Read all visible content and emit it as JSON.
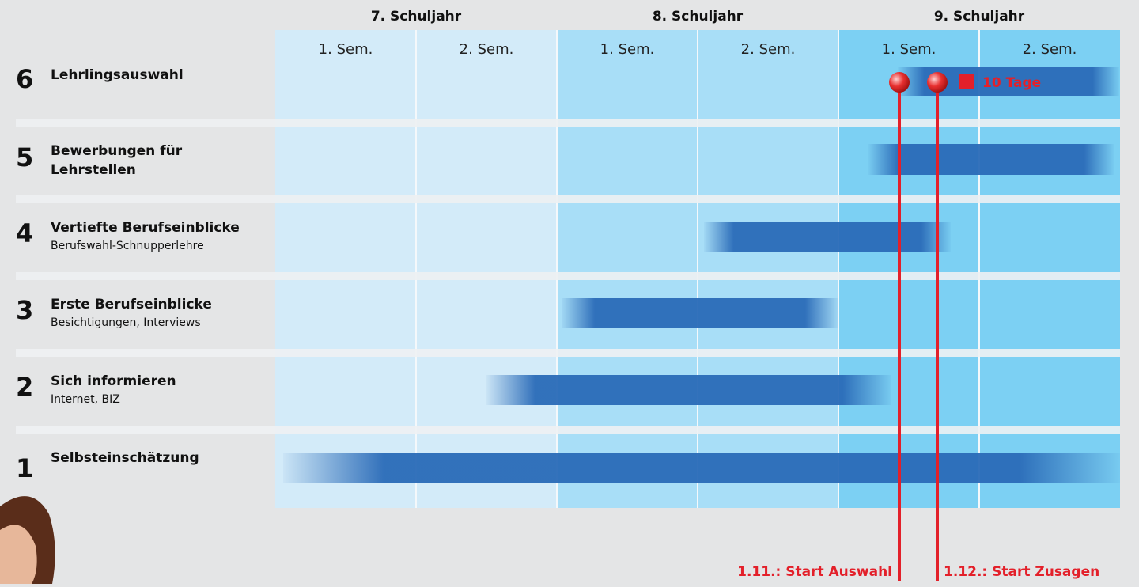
{
  "header": {
    "years": [
      "7. Schuljahr",
      "8. Schuljahr",
      "9. Schuljahr"
    ],
    "semesters": [
      "1. Sem.",
      "2. Sem.",
      "1. Sem.",
      "2. Sem.",
      "1. Sem.",
      "2. Sem."
    ]
  },
  "rows": [
    {
      "number": "6",
      "title": "Lehrlingsauswahl"
    },
    {
      "number": "5",
      "title": "Bewerbungen für",
      "title2": "Lehrstellen"
    },
    {
      "number": "4",
      "title": "Vertiefte Berufseinblicke",
      "subtitle": "Berufswahl-Schnupperlehre"
    },
    {
      "number": "3",
      "title": "Erste Berufseinblicke",
      "subtitle": "Besichtigungen, Interviews"
    },
    {
      "number": "2",
      "title": "Sich informieren",
      "subtitle": "Internet, BIZ"
    },
    {
      "number": "1",
      "title": "Selbsteinschätzung"
    }
  ],
  "annotations": {
    "duration": "10 Tage",
    "start_selection": "1.11.: Start Auswahl",
    "start_commitments": "1.12.: Start Zusagen"
  }
}
